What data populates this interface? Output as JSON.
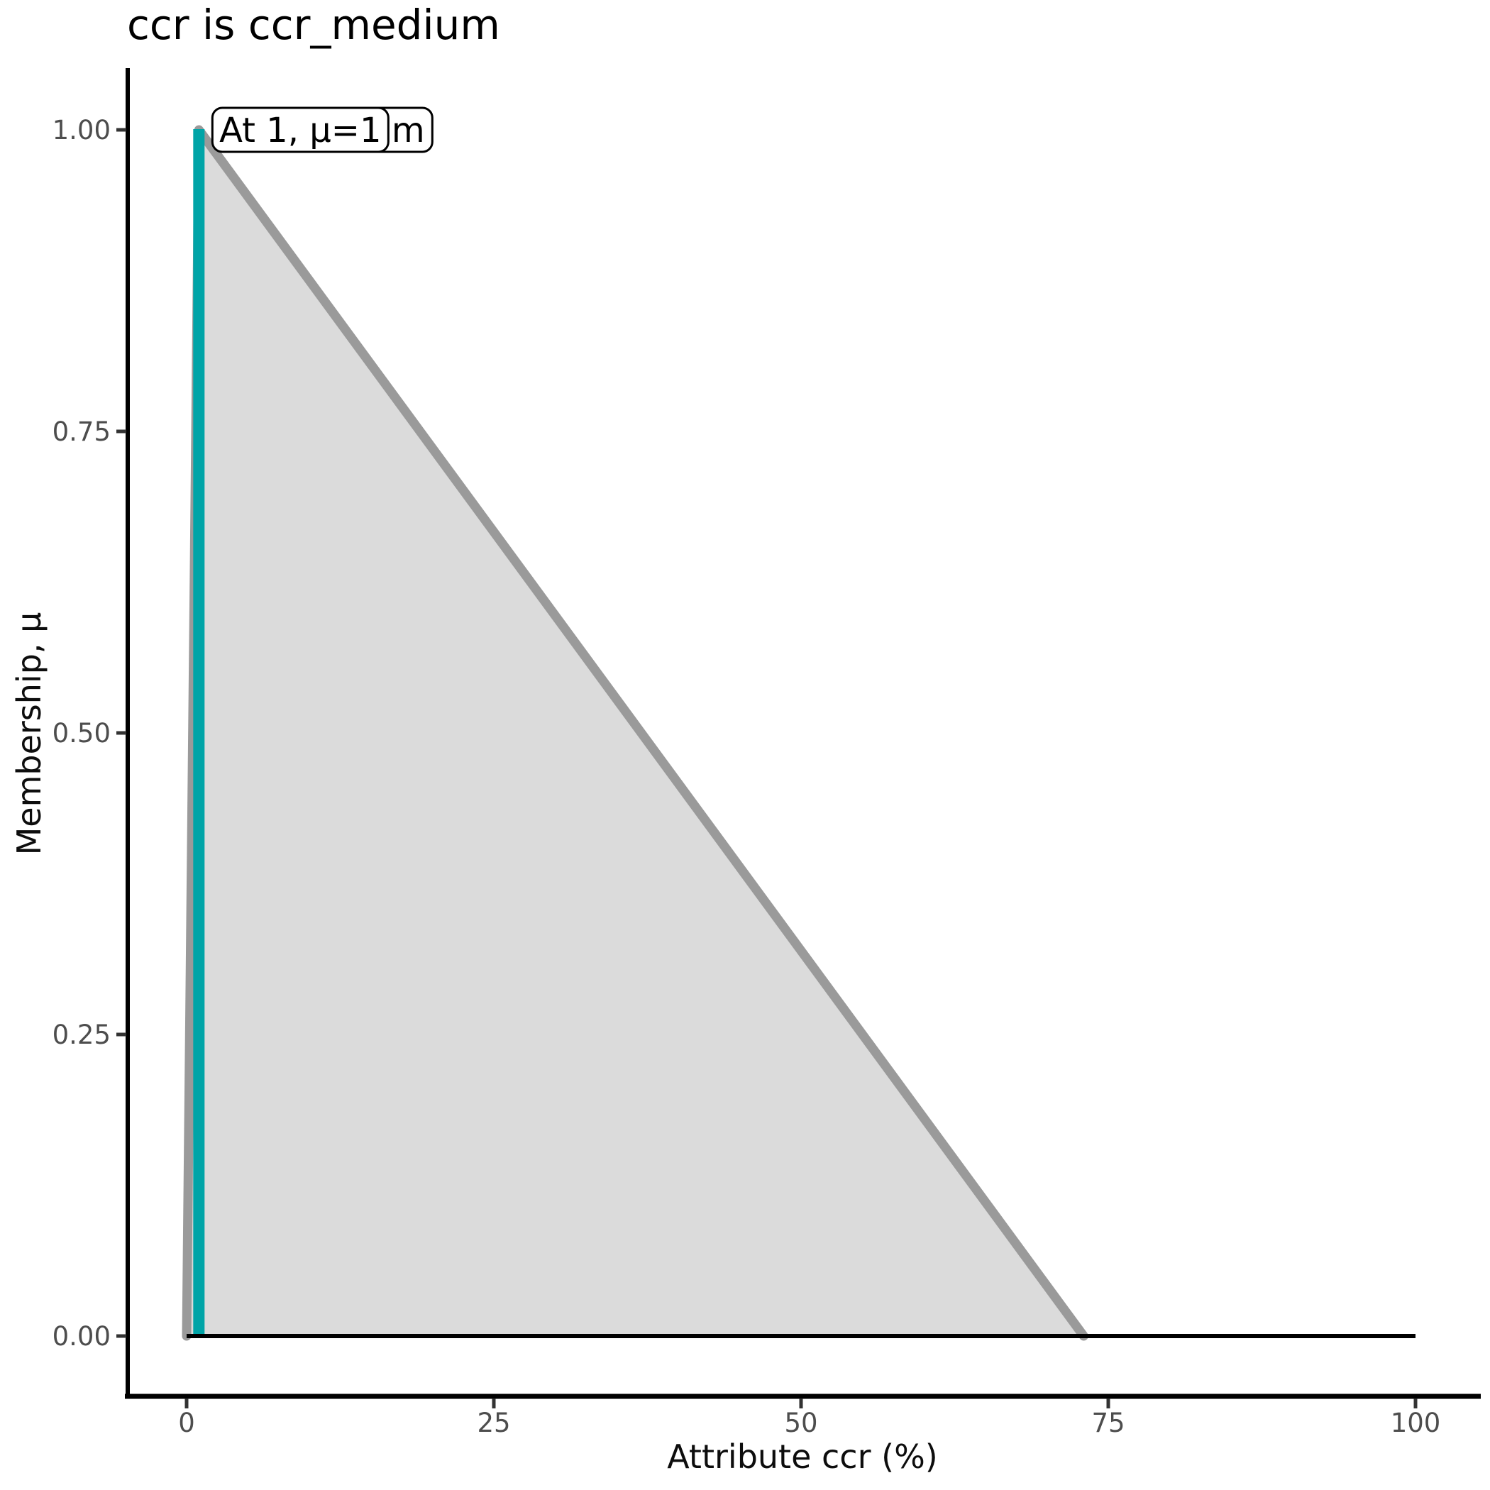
{
  "title": {
    "text": "ccr is ccr_medium"
  },
  "axes": {
    "x": {
      "label": "Attribute ccr (%)",
      "tick_values": [
        0,
        25,
        50,
        75,
        100
      ],
      "tick_labels": [
        "0",
        "25",
        "50",
        "75",
        "100"
      ]
    },
    "y": {
      "label": "Membership, μ",
      "tick_values": [
        0,
        0.25,
        0.5,
        0.75,
        1
      ],
      "tick_labels": [
        "0.00",
        "0.25",
        "0.50",
        "0.75",
        "1.00"
      ]
    }
  },
  "annotation": {
    "front_label": "At 1, μ=1",
    "back_label_visible_text": "m"
  },
  "colors": {
    "background": "#ffffff",
    "membership_line": "#9a9a9a",
    "membership_fill": "#dbdbdb",
    "baseline": "#000000",
    "highlight": "#00a4a7",
    "axis_line": "#000000",
    "tick_mark": "#333333",
    "tick_label": "#4d4d4d",
    "title_text": "#000000",
    "annotation_box_bg": "#ffffff",
    "annotation_box_border": "#000000",
    "annotation_text": "#000000"
  },
  "chart_data": {
    "type": "area",
    "title": "ccr is ccr_medium",
    "xlabel": "Attribute ccr (%)",
    "ylabel": "Membership, μ",
    "xlim": [
      0,
      100
    ],
    "ylim": [
      0,
      1
    ],
    "x_ticks": [
      0,
      25,
      50,
      75,
      100
    ],
    "y_ticks": [
      0,
      0.25,
      0.5,
      0.75,
      1
    ],
    "grid": false,
    "legend": null,
    "series": [
      {
        "name": "ccr_medium membership function",
        "type": "area",
        "points": [
          [
            0,
            0
          ],
          [
            1,
            1
          ],
          [
            73,
            0
          ]
        ],
        "line_color": "#9a9a9a",
        "fill_color": "#dbdbdb",
        "line_width": 13
      },
      {
        "name": "zero membership baseline",
        "type": "line",
        "points": [
          [
            0,
            0
          ],
          [
            100,
            0
          ]
        ],
        "color": "#000000",
        "line_width": 6
      },
      {
        "name": "input value highlight",
        "type": "vline",
        "x": 1,
        "from": 0,
        "to": 1,
        "color": "#00a4a7",
        "line_width": 16
      }
    ],
    "annotations": [
      {
        "text": "At 1, μ=1",
        "anchor_x": 1,
        "anchor_y": 1
      },
      {
        "text": "m",
        "anchor_x": 1,
        "anchor_y": 1,
        "note": "label partially hidden behind front label, only last letter visible"
      }
    ]
  }
}
